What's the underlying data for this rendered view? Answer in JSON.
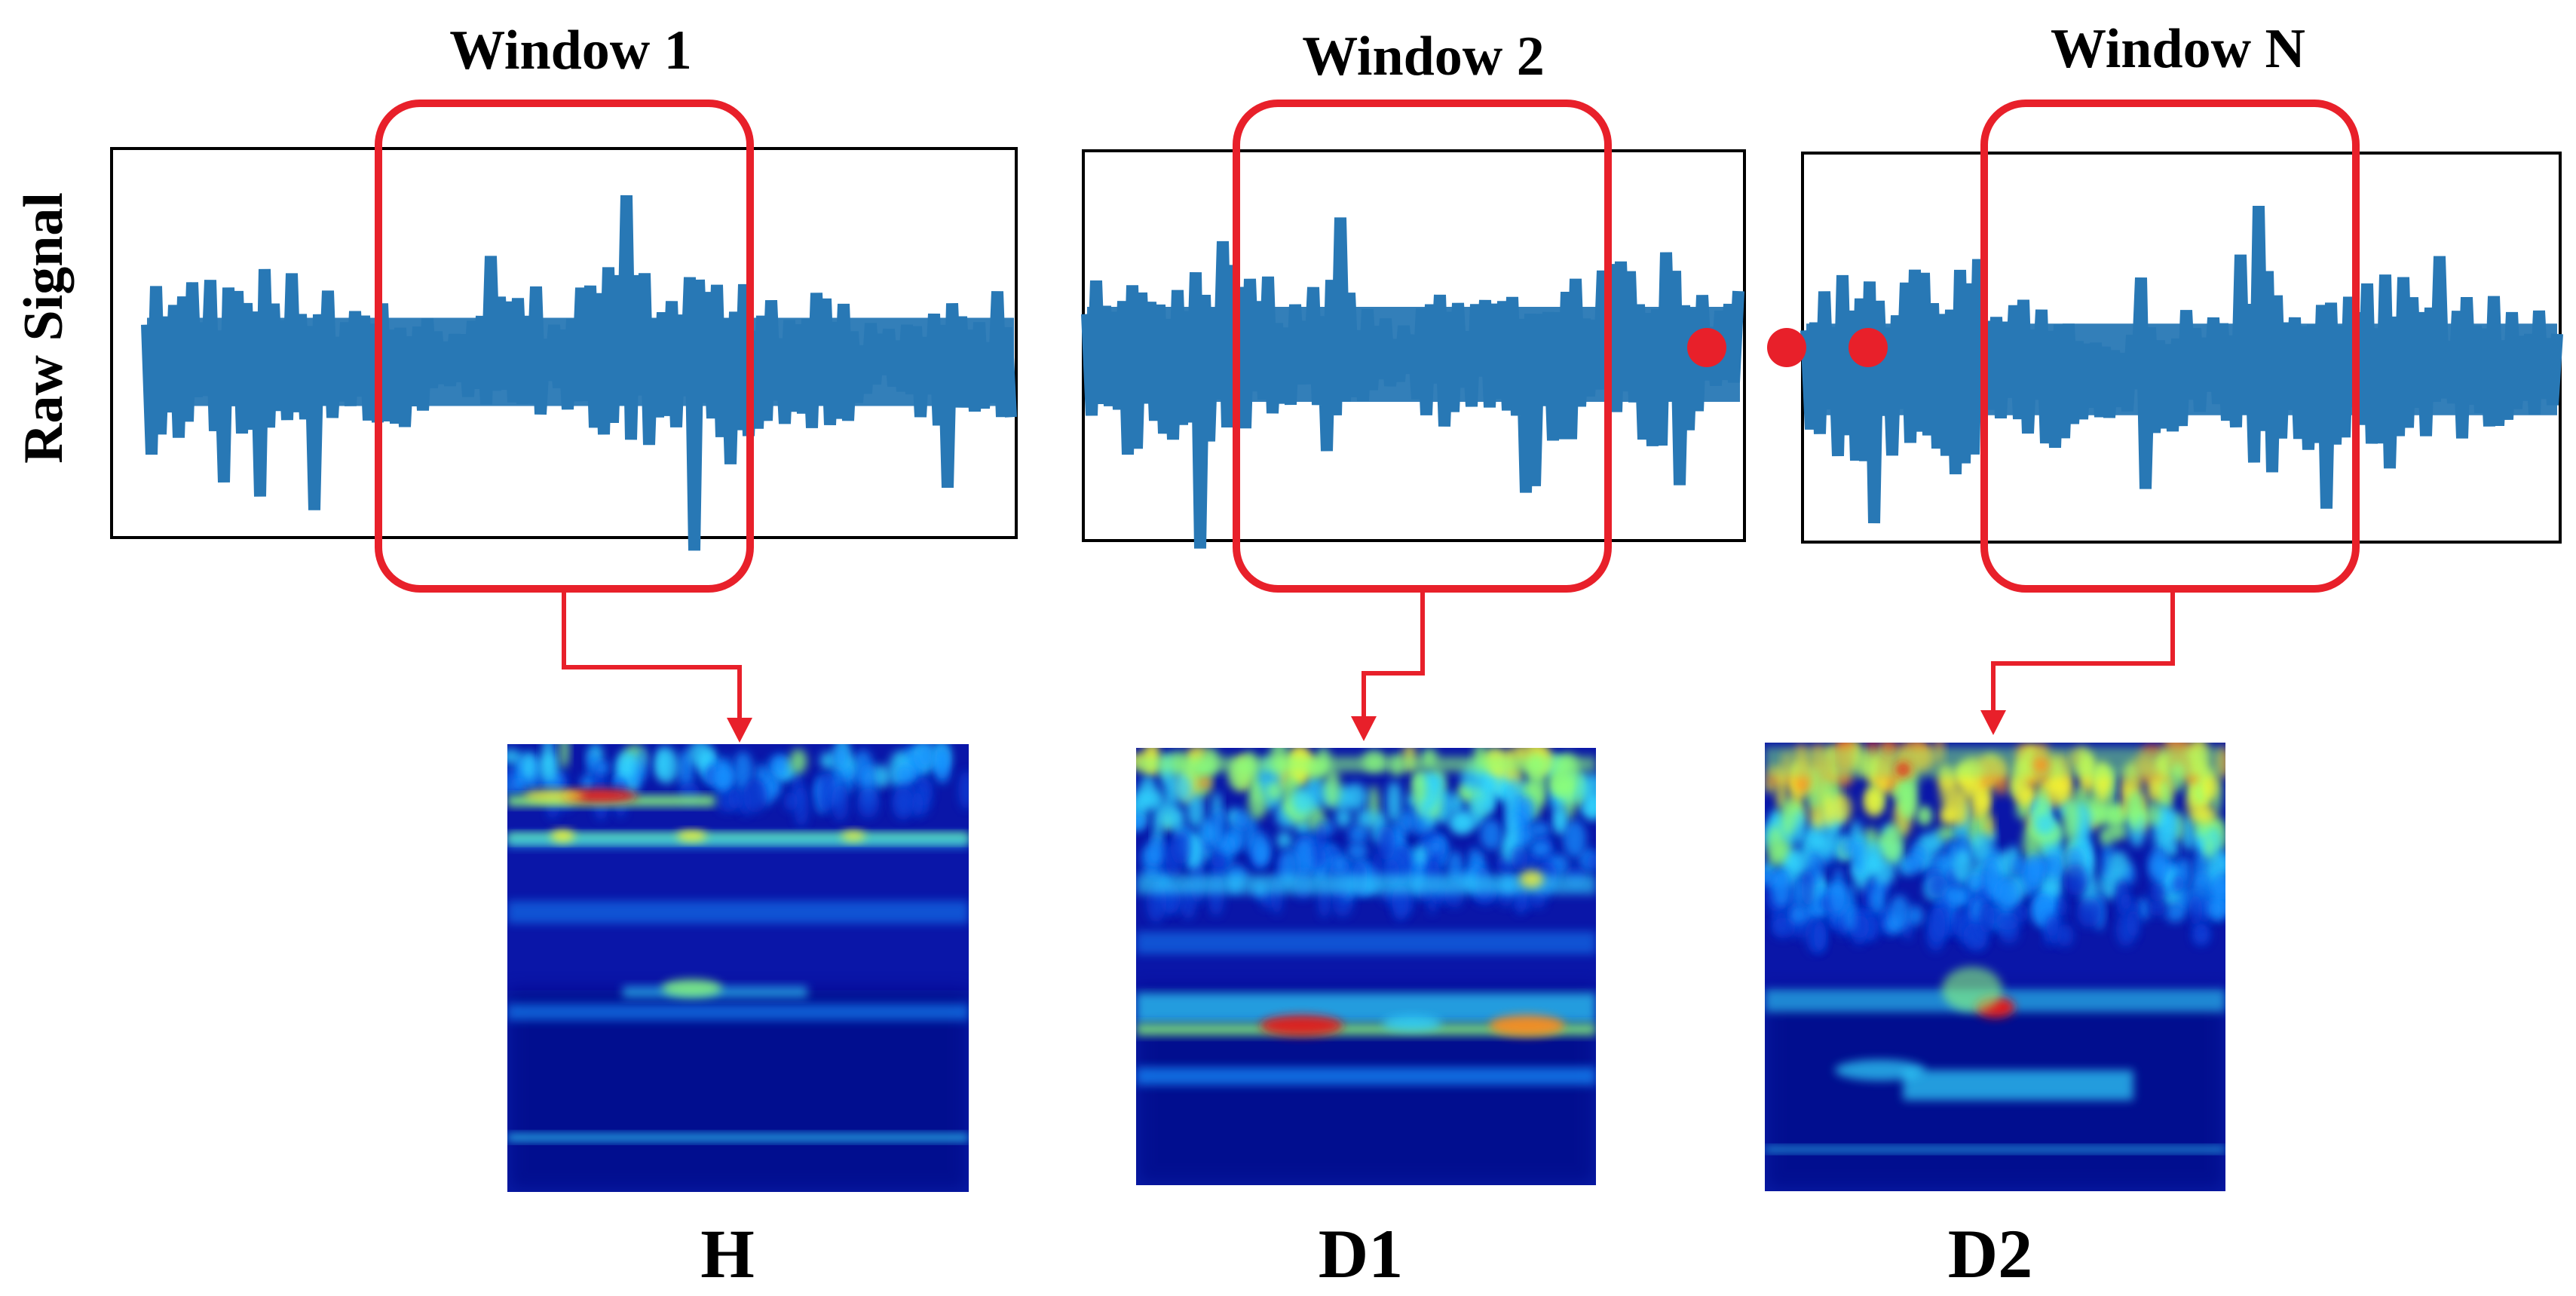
{
  "y_axis_label": "Raw Signal",
  "colors": {
    "signal": "#2878b5",
    "window_box": "#e8202a",
    "frame": "#000000",
    "ellipsis_dots": "#e8202a",
    "scalogram_background": "#0a16a8"
  },
  "windows": [
    {
      "title": "Window 1",
      "output_label": "H"
    },
    {
      "title": "Window 2",
      "output_label": "D1"
    },
    {
      "title": "Window N",
      "output_label": "D2"
    }
  ],
  "ellipsis": {
    "dot_count": 3
  }
}
